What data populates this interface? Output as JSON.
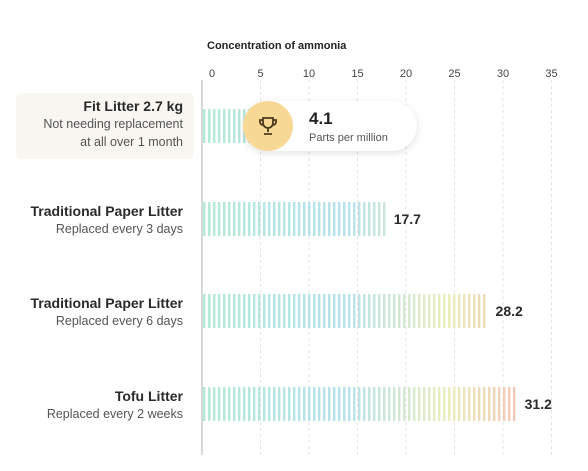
{
  "chart_data": {
    "type": "bar",
    "orientation": "horizontal",
    "xlabel": "Concentration of ammonia",
    "xlim": [
      0,
      35
    ],
    "xticks": [
      "0",
      "5",
      "10",
      "15",
      "20",
      "25",
      "30",
      "35"
    ],
    "grid": true,
    "categories": [
      {
        "name": "Fit Litter 2.7 kg",
        "sub_line1": "Not needing replacement",
        "sub_line2": "at all over 1 month"
      },
      {
        "name": "Traditional Paper Litter",
        "sub_line1": "Replaced every 3 days"
      },
      {
        "name": "Traditional Paper Litter",
        "sub_line1": "Replaced every 6 days"
      },
      {
        "name": "Tofu Litter",
        "sub_line1": "Replaced every 2 weeks"
      }
    ],
    "values": [
      4.1,
      17.7,
      28.2,
      31.2
    ],
    "value_labels": [
      "4.1",
      "17.7",
      "28.2",
      "31.2"
    ],
    "highlight": {
      "value": "4.1",
      "unit": "Parts per million",
      "icon": "trophy-icon"
    },
    "colors": {
      "start": "#a8e6cf",
      "mid1": "#a8dcec",
      "mid2": "#e6ebb0",
      "end": "#f7a6a6",
      "badge_circle": "#f7d894",
      "highlight_bg": "#f8f6f0"
    }
  }
}
